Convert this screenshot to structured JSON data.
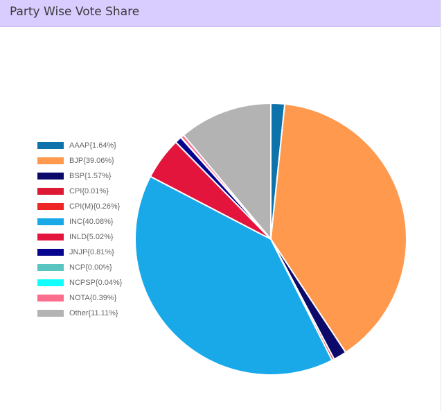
{
  "header": {
    "title": "Party Wise Vote Share"
  },
  "chart_data": {
    "type": "pie",
    "title": "Party Wise Vote Share",
    "legend_position": "left",
    "slices": [
      {
        "label": "AAAP{1.64%}",
        "name": "AAAP",
        "value": 1.64,
        "color": "#0e72ab"
      },
      {
        "label": "BJP{39.06%}",
        "name": "BJP",
        "value": 39.06,
        "color": "#fe994e"
      },
      {
        "label": "BSP{1.57%}",
        "name": "BSP",
        "value": 1.57,
        "color": "#0b0a6b"
      },
      {
        "label": "CPI{0.01%}",
        "name": "CPI",
        "value": 0.01,
        "color": "#dd1935"
      },
      {
        "label": "CPI(M){0.26%}",
        "name": "CPI(M)",
        "value": 0.26,
        "color": "#ee2626"
      },
      {
        "label": "INC{40.08%}",
        "name": "INC",
        "value": 40.08,
        "color": "#19a9e9"
      },
      {
        "label": "INLD{5.02%}",
        "name": "INLD",
        "value": 5.02,
        "color": "#e3153d"
      },
      {
        "label": "JNJP{0.81%}",
        "name": "JNJP",
        "value": 0.81,
        "color": "#07058f"
      },
      {
        "label": "NCP{0.00%}",
        "name": "NCP",
        "value": 0.0,
        "color": "#58c5c1"
      },
      {
        "label": "NCPSP{0.04%}",
        "name": "NCPSP",
        "value": 0.04,
        "color": "#12fdfd"
      },
      {
        "label": "NOTA{0.39%}",
        "name": "NOTA",
        "value": 0.39,
        "color": "#fb6e8e"
      },
      {
        "label": "Other{11.11%}",
        "name": "Other",
        "value": 11.11,
        "color": "#b3b3b3"
      }
    ]
  }
}
